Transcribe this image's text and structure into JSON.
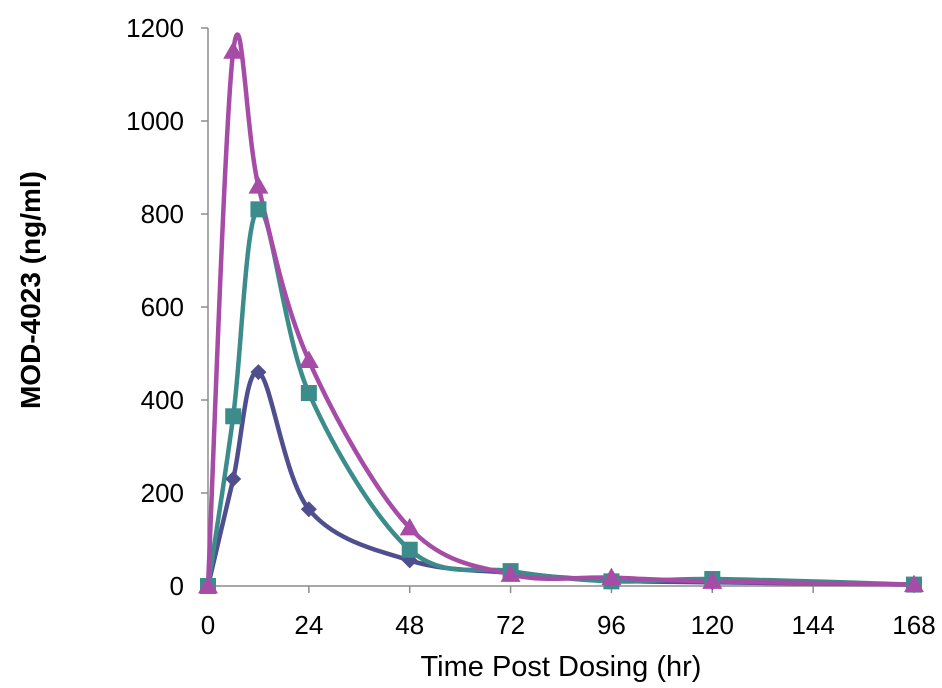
{
  "chart_data": {
    "type": "line",
    "title": "",
    "xlabel": "Time Post Dosing (hr)",
    "ylabel": "MOD-4023 (ng/ml)",
    "xlim": [
      0,
      168
    ],
    "ylim": [
      0,
      1200
    ],
    "x_ticks": [
      "0",
      "24",
      "48",
      "72",
      "96",
      "120",
      "144",
      "168"
    ],
    "y_ticks": [
      "0",
      "200",
      "400",
      "600",
      "800",
      "1000",
      "1200"
    ],
    "grid": false,
    "legend": "none",
    "smooth": true,
    "x": [
      0,
      6,
      12,
      24,
      48,
      72,
      96,
      120,
      168
    ],
    "series": [
      {
        "marker": "diamond",
        "color": "#4F4F8F",
        "values": [
          0,
          230,
          460,
          165,
          55,
          28,
          12,
          8,
          3
        ]
      },
      {
        "marker": "square",
        "color": "#3C8C8C",
        "values": [
          0,
          365,
          810,
          415,
          78,
          32,
          10,
          15,
          3
        ]
      },
      {
        "marker": "triangle",
        "color": "#A64CA6",
        "values": [
          0,
          1150,
          860,
          485,
          125,
          25,
          18,
          10,
          3
        ]
      }
    ]
  }
}
